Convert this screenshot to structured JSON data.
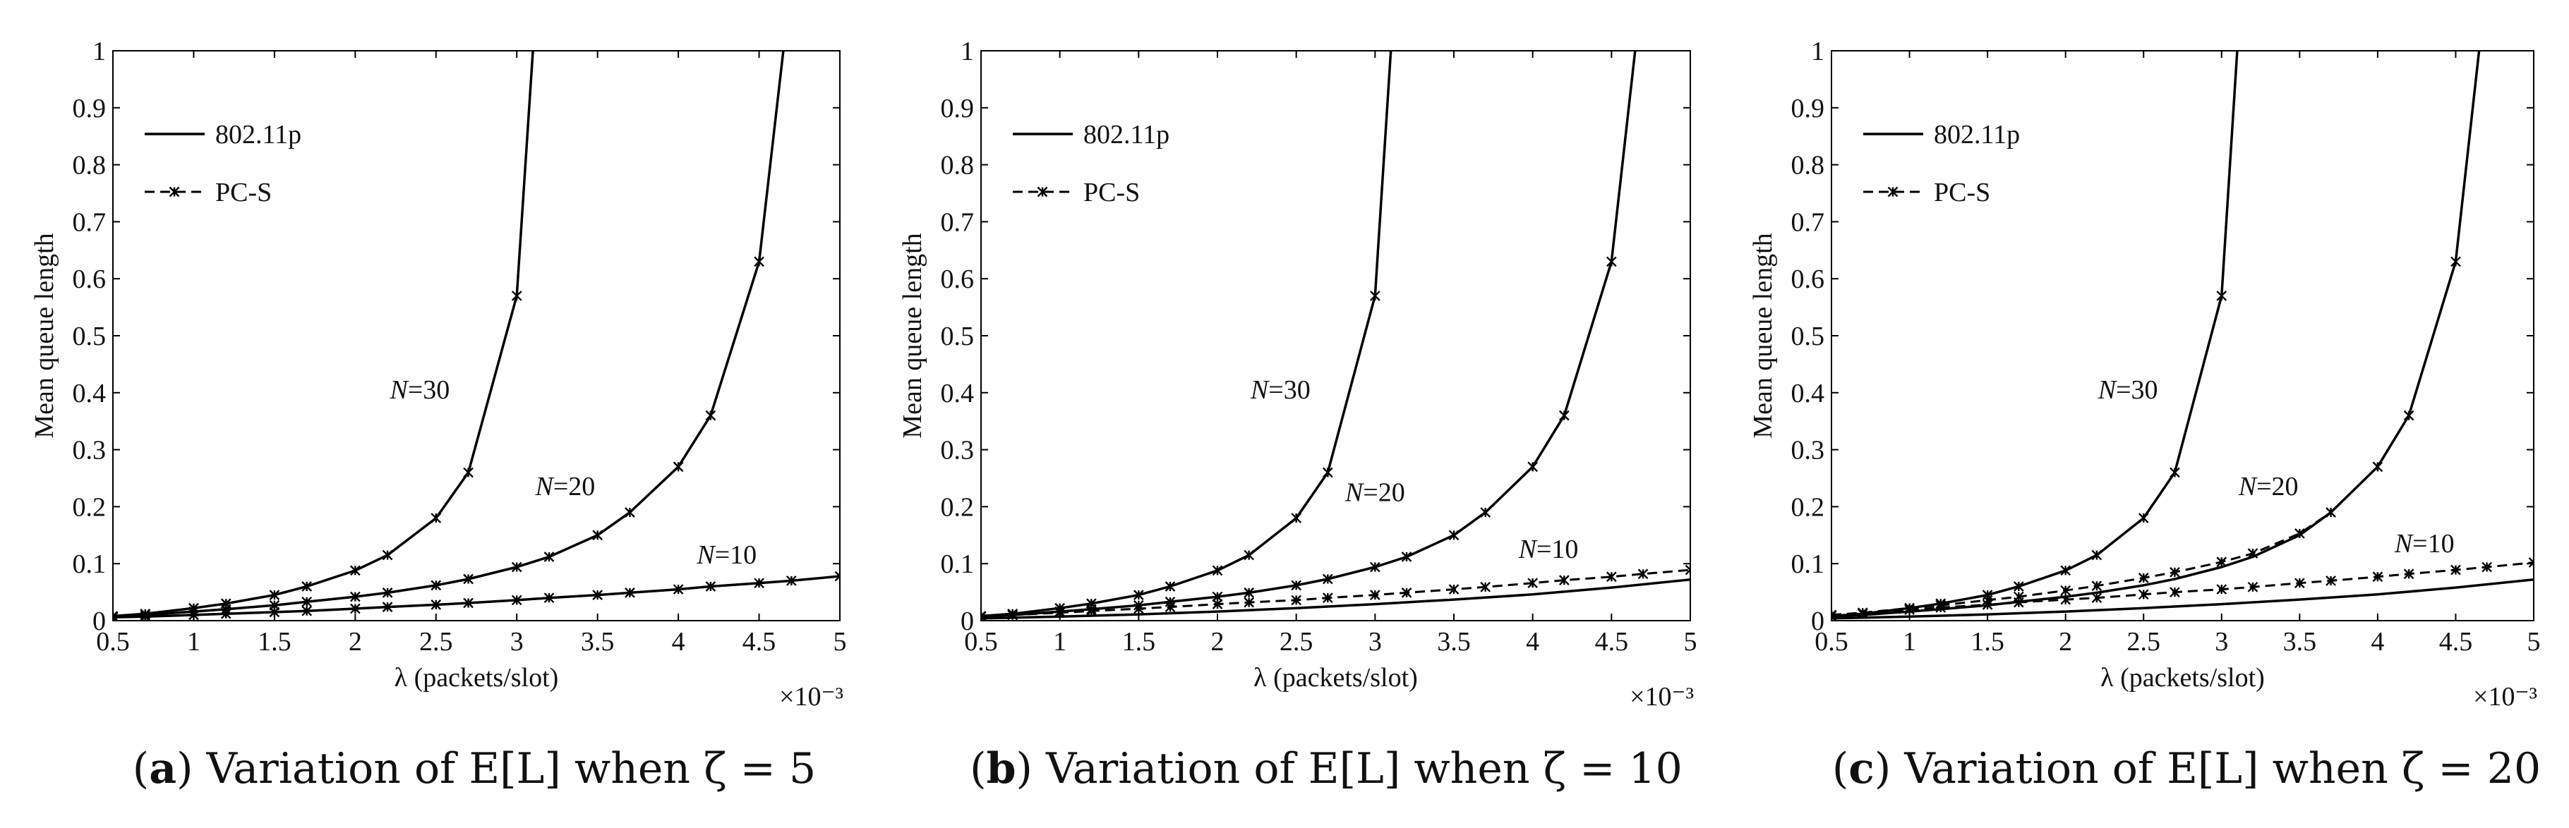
{
  "chart_data": [
    {
      "type": "line",
      "caption": {
        "letter": "(a)",
        "text": "Variation of E[L] when ζ = 5"
      },
      "xlabel": "λ (packets/slot)",
      "ylabel": "Mean queue length",
      "x_multiplier": "×10⁻³",
      "xlim": [
        0.5,
        5
      ],
      "ylim": [
        0,
        1
      ],
      "xticks": [
        "0.5",
        "1",
        "1.5",
        "2",
        "2.5",
        "3",
        "3.5",
        "4",
        "4.5",
        "5"
      ],
      "yticks": [
        "0",
        "0.1",
        "0.2",
        "0.3",
        "0.4",
        "0.5",
        "0.6",
        "0.7",
        "0.8",
        "0.9",
        "1"
      ],
      "legend": [
        {
          "name": "802.11p",
          "style": "solid"
        },
        {
          "name": "PC-S",
          "style": "dashed-marker"
        }
      ],
      "annotations": [
        {
          "text": "N=30",
          "x": 2.4,
          "y": 0.39
        },
        {
          "text": "N=20",
          "x": 3.3,
          "y": 0.22
        },
        {
          "text": "N=10",
          "x": 4.3,
          "y": 0.1
        }
      ],
      "series": [
        {
          "name": "802.11p",
          "N": 30,
          "x": [
            0.5,
            0.7,
            1.0,
            1.2,
            1.5,
            1.7,
            2.0,
            2.2,
            2.5,
            2.7,
            3.0,
            3.1
          ],
          "y": [
            0.008,
            0.012,
            0.022,
            0.03,
            0.045,
            0.06,
            0.088,
            0.115,
            0.18,
            0.26,
            0.57,
            1.0
          ]
        },
        {
          "name": "PC-S",
          "N": 30,
          "x": [
            0.5,
            0.7,
            1.0,
            1.2,
            1.5,
            1.7,
            2.0,
            2.2,
            2.5,
            2.7,
            3.0
          ],
          "y": [
            0.008,
            0.012,
            0.022,
            0.03,
            0.045,
            0.06,
            0.088,
            0.115,
            0.18,
            0.26,
            0.57
          ]
        },
        {
          "name": "802.11p",
          "N": 20,
          "x": [
            0.5,
            0.7,
            1.0,
            1.2,
            1.5,
            1.7,
            2.0,
            2.2,
            2.5,
            2.7,
            3.0,
            3.2,
            3.5,
            3.7,
            4.0,
            4.2,
            4.5,
            4.65
          ],
          "y": [
            0.007,
            0.01,
            0.016,
            0.02,
            0.027,
            0.033,
            0.042,
            0.049,
            0.062,
            0.073,
            0.094,
            0.112,
            0.15,
            0.19,
            0.27,
            0.36,
            0.63,
            1.0
          ]
        },
        {
          "name": "PC-S",
          "N": 20,
          "x": [
            0.5,
            0.7,
            1.0,
            1.2,
            1.5,
            1.7,
            2.0,
            2.2,
            2.5,
            2.7,
            3.0,
            3.2,
            3.5,
            3.7,
            4.0,
            4.2,
            4.5
          ],
          "y": [
            0.007,
            0.01,
            0.016,
            0.02,
            0.027,
            0.033,
            0.042,
            0.049,
            0.062,
            0.073,
            0.094,
            0.112,
            0.15,
            0.19,
            0.27,
            0.36,
            0.63
          ]
        },
        {
          "name": "802.11p",
          "N": 10,
          "x": [
            0.5,
            0.7,
            1.0,
            1.2,
            1.5,
            1.7,
            2.0,
            2.2,
            2.5,
            2.7,
            3.0,
            3.2,
            3.5,
            3.7,
            4.0,
            4.2,
            4.5,
            4.7,
            5.0
          ],
          "y": [
            0.006,
            0.007,
            0.01,
            0.012,
            0.015,
            0.017,
            0.021,
            0.024,
            0.028,
            0.031,
            0.036,
            0.04,
            0.045,
            0.049,
            0.055,
            0.06,
            0.066,
            0.07,
            0.078
          ]
        },
        {
          "name": "PC-S",
          "N": 10,
          "x": [
            0.5,
            0.7,
            1.0,
            1.2,
            1.5,
            1.7,
            2.0,
            2.2,
            2.5,
            2.7,
            3.0,
            3.2,
            3.5,
            3.7,
            4.0,
            4.2,
            4.5,
            4.7,
            5.0
          ],
          "y": [
            0.006,
            0.007,
            0.01,
            0.012,
            0.015,
            0.017,
            0.021,
            0.024,
            0.028,
            0.031,
            0.036,
            0.04,
            0.045,
            0.049,
            0.055,
            0.06,
            0.066,
            0.07,
            0.078
          ]
        }
      ]
    },
    {
      "type": "line",
      "caption": {
        "letter": "(b)",
        "text": "Variation of E[L] when ζ = 10"
      },
      "xlabel": "λ (packets/slot)",
      "ylabel": "Mean queue length",
      "x_multiplier": "×10⁻³",
      "xlim": [
        0.5,
        5
      ],
      "ylim": [
        0,
        1
      ],
      "xticks": [
        "0.5",
        "1",
        "1.5",
        "2",
        "2.5",
        "3",
        "3.5",
        "4",
        "4.5",
        "5"
      ],
      "yticks": [
        "0",
        "0.1",
        "0.2",
        "0.3",
        "0.4",
        "0.5",
        "0.6",
        "0.7",
        "0.8",
        "0.9",
        "1"
      ],
      "legend": [
        {
          "name": "802.11p",
          "style": "solid"
        },
        {
          "name": "PC-S",
          "style": "dashed-marker"
        }
      ],
      "annotations": [
        {
          "text": "N=30",
          "x": 2.4,
          "y": 0.39
        },
        {
          "text": "N=20",
          "x": 3.0,
          "y": 0.21
        },
        {
          "text": "N=10",
          "x": 4.1,
          "y": 0.11
        }
      ],
      "series": [
        {
          "name": "802.11p",
          "N": 30,
          "x": [
            0.5,
            0.7,
            1.0,
            1.2,
            1.5,
            1.7,
            2.0,
            2.2,
            2.5,
            2.7,
            3.0,
            3.1
          ],
          "y": [
            0.008,
            0.012,
            0.022,
            0.03,
            0.045,
            0.06,
            0.088,
            0.115,
            0.18,
            0.26,
            0.57,
            1.0
          ]
        },
        {
          "name": "PC-S",
          "N": 30,
          "x": [
            0.5,
            0.7,
            1.0,
            1.2,
            1.5,
            1.7,
            2.0,
            2.2,
            2.5,
            2.7,
            3.0
          ],
          "y": [
            0.008,
            0.012,
            0.022,
            0.03,
            0.045,
            0.06,
            0.088,
            0.115,
            0.18,
            0.26,
            0.57
          ]
        },
        {
          "name": "802.11p",
          "N": 20,
          "x": [
            0.5,
            0.7,
            1.0,
            1.2,
            1.5,
            1.7,
            2.0,
            2.2,
            2.5,
            2.7,
            3.0,
            3.2,
            3.5,
            3.7,
            4.0,
            4.2,
            4.5,
            4.65
          ],
          "y": [
            0.007,
            0.01,
            0.016,
            0.02,
            0.027,
            0.033,
            0.042,
            0.049,
            0.062,
            0.073,
            0.094,
            0.112,
            0.15,
            0.19,
            0.27,
            0.36,
            0.63,
            1.0
          ]
        },
        {
          "name": "PC-S",
          "N": 20,
          "x": [
            0.5,
            0.7,
            1.0,
            1.2,
            1.5,
            1.7,
            2.0,
            2.2,
            2.5,
            2.7,
            3.0,
            3.2,
            3.5,
            3.7,
            4.0,
            4.2,
            4.5
          ],
          "y": [
            0.007,
            0.01,
            0.016,
            0.02,
            0.027,
            0.033,
            0.042,
            0.049,
            0.062,
            0.073,
            0.094,
            0.112,
            0.15,
            0.19,
            0.27,
            0.36,
            0.63
          ]
        },
        {
          "name": "802.11p",
          "N": 10,
          "x": [
            0.5,
            1.0,
            1.5,
            2.0,
            2.5,
            3.0,
            3.5,
            4.0,
            4.5,
            5.0
          ],
          "y": [
            0.004,
            0.007,
            0.011,
            0.016,
            0.022,
            0.029,
            0.037,
            0.046,
            0.058,
            0.072
          ]
        },
        {
          "name": "PC-S",
          "N": 10,
          "x": [
            0.5,
            0.7,
            1.0,
            1.2,
            1.5,
            1.7,
            2.0,
            2.2,
            2.5,
            2.7,
            3.0,
            3.2,
            3.5,
            3.7,
            4.0,
            4.2,
            4.5,
            4.7,
            5.0
          ],
          "y": [
            0.008,
            0.01,
            0.014,
            0.017,
            0.021,
            0.024,
            0.029,
            0.032,
            0.036,
            0.04,
            0.045,
            0.049,
            0.055,
            0.059,
            0.066,
            0.071,
            0.077,
            0.082,
            0.089
          ]
        }
      ]
    },
    {
      "type": "line",
      "caption": {
        "letter": "(c)",
        "text": "Variation of E[L] when ζ = 20"
      },
      "xlabel": "λ (packets/slot)",
      "ylabel": "Mean queue length",
      "x_multiplier": "×10⁻³",
      "xlim": [
        0.5,
        5
      ],
      "ylim": [
        0,
        1
      ],
      "xticks": [
        "0.5",
        "1",
        "1.5",
        "2",
        "2.5",
        "3",
        "3.5",
        "4",
        "4.5",
        "5"
      ],
      "yticks": [
        "0",
        "0.1",
        "0.2",
        "0.3",
        "0.4",
        "0.5",
        "0.6",
        "0.7",
        "0.8",
        "0.9",
        "1"
      ],
      "legend": [
        {
          "name": "802.11p",
          "style": "solid"
        },
        {
          "name": "PC-S",
          "style": "dashed-marker"
        }
      ],
      "annotations": [
        {
          "text": "N=30",
          "x": 2.4,
          "y": 0.39
        },
        {
          "text": "N=20",
          "x": 3.3,
          "y": 0.22
        },
        {
          "text": "N=10",
          "x": 4.3,
          "y": 0.12
        }
      ],
      "series": [
        {
          "name": "802.11p",
          "N": 30,
          "x": [
            0.5,
            0.7,
            1.0,
            1.2,
            1.5,
            1.7,
            2.0,
            2.2,
            2.5,
            2.7,
            3.0,
            3.1
          ],
          "y": [
            0.008,
            0.012,
            0.022,
            0.03,
            0.045,
            0.06,
            0.088,
            0.115,
            0.18,
            0.26,
            0.57,
            1.0
          ]
        },
        {
          "name": "PC-S",
          "N": 30,
          "x": [
            0.5,
            0.7,
            1.0,
            1.2,
            1.5,
            1.7,
            2.0,
            2.2,
            2.5,
            2.7,
            3.0
          ],
          "y": [
            0.008,
            0.012,
            0.022,
            0.03,
            0.045,
            0.06,
            0.088,
            0.115,
            0.18,
            0.26,
            0.57
          ]
        },
        {
          "name": "802.11p",
          "N": 20,
          "x": [
            0.5,
            0.7,
            1.0,
            1.2,
            1.5,
            1.7,
            2.0,
            2.2,
            2.5,
            2.7,
            3.0,
            3.2,
            3.5,
            3.7,
            4.0,
            4.2,
            4.5,
            4.65
          ],
          "y": [
            0.007,
            0.01,
            0.016,
            0.02,
            0.027,
            0.033,
            0.042,
            0.049,
            0.062,
            0.073,
            0.094,
            0.112,
            0.15,
            0.19,
            0.27,
            0.36,
            0.63,
            1.0
          ]
        },
        {
          "name": "PC-S",
          "N": 20,
          "x": [
            0.5,
            0.7,
            1.0,
            1.2,
            1.5,
            1.7,
            2.0,
            2.2,
            2.5,
            2.7,
            3.0,
            3.2,
            3.5,
            3.7,
            4.0,
            4.2,
            4.5
          ],
          "y": [
            0.01,
            0.014,
            0.022,
            0.027,
            0.036,
            0.042,
            0.053,
            0.061,
            0.075,
            0.085,
            0.103,
            0.118,
            0.153,
            0.19,
            0.27,
            0.36,
            0.63
          ]
        },
        {
          "name": "802.11p",
          "N": 10,
          "x": [
            0.5,
            1.0,
            1.5,
            2.0,
            2.5,
            3.0,
            3.5,
            4.0,
            4.5,
            5.0
          ],
          "y": [
            0.004,
            0.007,
            0.011,
            0.016,
            0.022,
            0.029,
            0.037,
            0.046,
            0.058,
            0.072
          ]
        },
        {
          "name": "PC-S",
          "N": 10,
          "x": [
            0.5,
            0.7,
            1.0,
            1.2,
            1.5,
            1.7,
            2.0,
            2.2,
            2.5,
            2.7,
            3.0,
            3.2,
            3.5,
            3.7,
            4.0,
            4.2,
            4.5,
            4.7,
            5.0
          ],
          "y": [
            0.01,
            0.013,
            0.019,
            0.023,
            0.028,
            0.032,
            0.037,
            0.04,
            0.046,
            0.05,
            0.055,
            0.059,
            0.066,
            0.07,
            0.077,
            0.082,
            0.089,
            0.094,
            0.102
          ]
        }
      ]
    }
  ]
}
